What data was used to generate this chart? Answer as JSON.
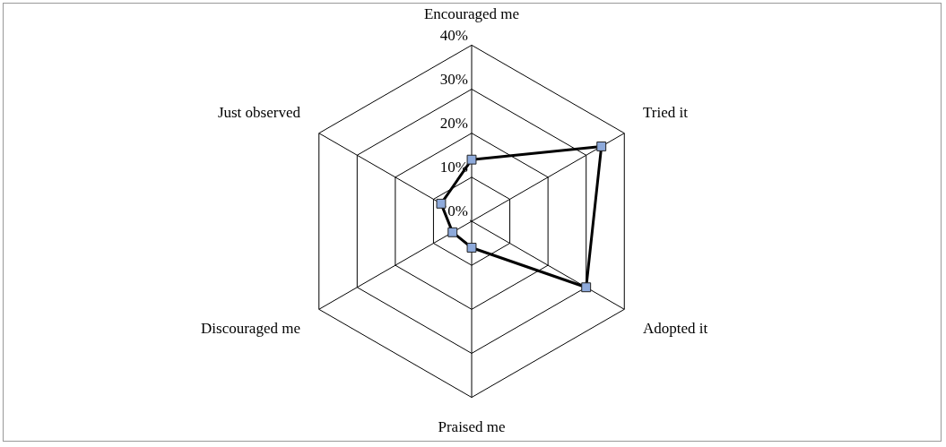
{
  "chart_data": {
    "type": "radar",
    "categories": [
      "Encouraged me",
      "Tried it",
      "Adopted it",
      "Praised me",
      "Discouraged me",
      "Just observed"
    ],
    "series": [
      {
        "color": "#000000",
        "colors": [
          "#8eaadb",
          "#8eaadb",
          "#8eaadb",
          "#8eaadb",
          "#8eaadb",
          "#8eaadb"
        ],
        "values": [
          14,
          34,
          30,
          6,
          5,
          8
        ]
      }
    ],
    "ylim": [
      0,
      40
    ],
    "yticks": [
      {
        "value": 0,
        "label": "0%"
      },
      {
        "value": 10,
        "label": "10%"
      },
      {
        "value": 20,
        "label": "20%"
      },
      {
        "value": 30,
        "label": "30%"
      },
      {
        "value": 40,
        "label": "40%"
      }
    ],
    "grid": true,
    "legend": false,
    "marker": "square",
    "line_style": "solid"
  }
}
